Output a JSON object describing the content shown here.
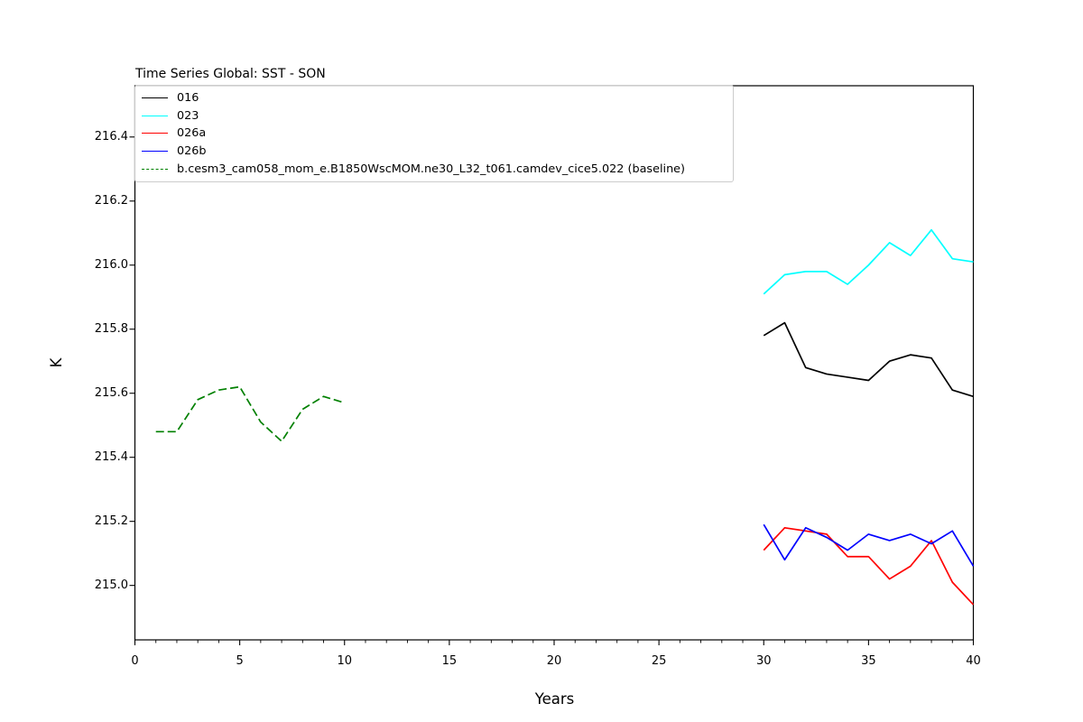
{
  "chart_data": {
    "type": "line",
    "title": "Time Series Global: SST - SON",
    "xlabel": "Years",
    "ylabel": "K",
    "xlim": [
      0,
      40
    ],
    "ylim": [
      214.83,
      216.56
    ],
    "xticks": [
      0,
      5,
      10,
      15,
      20,
      25,
      30,
      35,
      40
    ],
    "xticks_minor_step": 1,
    "yticks": [
      215.0,
      215.2,
      215.4,
      215.6,
      215.8,
      216.0,
      216.2,
      216.4
    ],
    "grid": false,
    "legend_position": "upper left",
    "series": [
      {
        "name": "016",
        "color": "#000000",
        "linestyle": "solid",
        "x": [
          30,
          31,
          32,
          33,
          34,
          35,
          36,
          37,
          38,
          39,
          40
        ],
        "y": [
          215.78,
          215.82,
          215.68,
          215.66,
          215.65,
          215.64,
          215.7,
          215.72,
          215.71,
          215.61,
          215.59
        ]
      },
      {
        "name": "023",
        "color": "#00ffff",
        "linestyle": "solid",
        "x": [
          30,
          31,
          32,
          33,
          34,
          35,
          36,
          37,
          38,
          39,
          40
        ],
        "y": [
          215.91,
          215.97,
          215.98,
          215.98,
          215.94,
          216.0,
          216.07,
          216.03,
          216.11,
          216.02,
          216.01
        ]
      },
      {
        "name": "026a",
        "color": "#ff0000",
        "linestyle": "solid",
        "x": [
          30,
          31,
          32,
          33,
          34,
          35,
          36,
          37,
          38,
          39,
          40
        ],
        "y": [
          215.11,
          215.18,
          215.17,
          215.16,
          215.09,
          215.09,
          215.02,
          215.06,
          215.14,
          215.01,
          214.94
        ]
      },
      {
        "name": "026b",
        "color": "#0000ff",
        "linestyle": "solid",
        "x": [
          30,
          31,
          32,
          33,
          34,
          35,
          36,
          37,
          38,
          39,
          40
        ],
        "y": [
          215.19,
          215.08,
          215.18,
          215.15,
          215.11,
          215.16,
          215.14,
          215.16,
          215.13,
          215.17,
          215.06
        ]
      },
      {
        "name": "b.cesm3_cam058_mom_e.B1850WscMOM.ne30_L32_t061.camdev_cice5.022 (baseline)",
        "color": "#008000",
        "linestyle": "dashed",
        "x": [
          1,
          2,
          3,
          4,
          5,
          6,
          7,
          8,
          9,
          10
        ],
        "y": [
          215.48,
          215.48,
          215.58,
          215.61,
          215.62,
          215.51,
          215.45,
          215.55,
          215.59,
          215.57
        ]
      }
    ]
  }
}
